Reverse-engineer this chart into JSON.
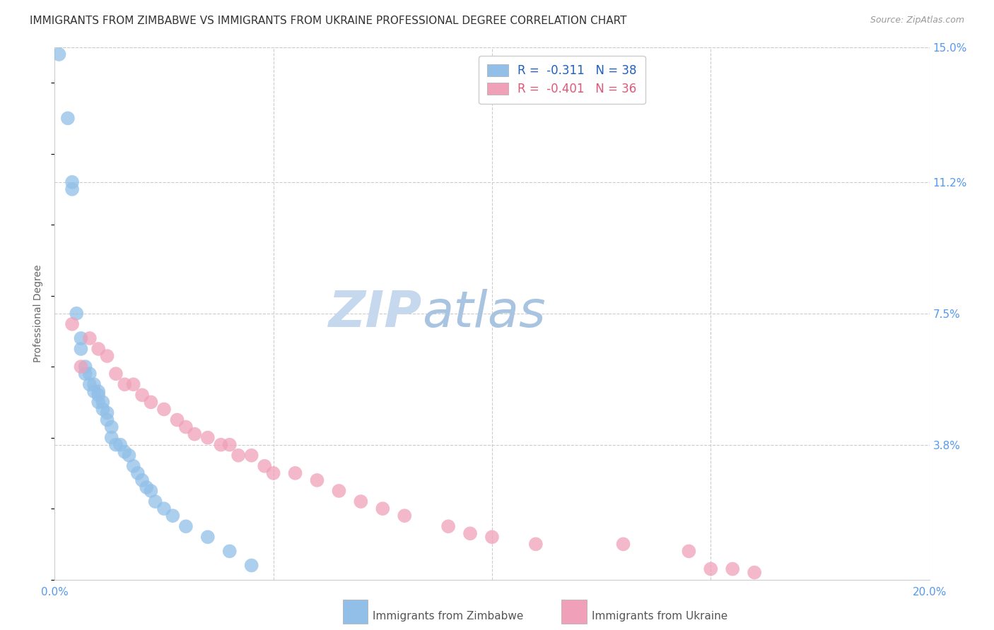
{
  "title": "IMMIGRANTS FROM ZIMBABWE VS IMMIGRANTS FROM UKRAINE PROFESSIONAL DEGREE CORRELATION CHART",
  "source": "Source: ZipAtlas.com",
  "ylabel": "Professional Degree",
  "xlim": [
    0.0,
    0.2
  ],
  "ylim": [
    0.0,
    0.15
  ],
  "ytick_right_labels": [
    "15.0%",
    "11.2%",
    "7.5%",
    "3.8%"
  ],
  "ytick_right_values": [
    0.15,
    0.112,
    0.075,
    0.038
  ],
  "xtick_values": [
    0.0,
    0.05,
    0.1,
    0.15,
    0.2
  ],
  "grid_color": "#cccccc",
  "background_color": "#ffffff",
  "watermark_zip_color": "#c5d8ee",
  "watermark_atlas_color": "#a8c4e0",
  "series": [
    {
      "name": "Immigrants from Zimbabwe",
      "color": "#91bfe8",
      "trend_color": "#2060c0",
      "R": -0.311,
      "N": 38,
      "x": [
        0.001,
        0.003,
        0.004,
        0.004,
        0.005,
        0.006,
        0.006,
        0.007,
        0.007,
        0.008,
        0.008,
        0.009,
        0.009,
        0.01,
        0.01,
        0.01,
        0.011,
        0.011,
        0.012,
        0.012,
        0.013,
        0.013,
        0.014,
        0.015,
        0.016,
        0.017,
        0.018,
        0.019,
        0.02,
        0.021,
        0.022,
        0.023,
        0.025,
        0.027,
        0.03,
        0.035,
        0.04,
        0.045
      ],
      "y": [
        0.148,
        0.13,
        0.112,
        0.11,
        0.075,
        0.068,
        0.065,
        0.06,
        0.058,
        0.058,
        0.055,
        0.055,
        0.053,
        0.053,
        0.052,
        0.05,
        0.05,
        0.048,
        0.047,
        0.045,
        0.043,
        0.04,
        0.038,
        0.038,
        0.036,
        0.035,
        0.032,
        0.03,
        0.028,
        0.026,
        0.025,
        0.022,
        0.02,
        0.018,
        0.015,
        0.012,
        0.008,
        0.004
      ]
    },
    {
      "name": "Immigrants from Ukraine",
      "color": "#f0a0b8",
      "trend_color": "#e05878",
      "R": -0.401,
      "N": 36,
      "x": [
        0.004,
        0.006,
        0.008,
        0.01,
        0.012,
        0.014,
        0.016,
        0.018,
        0.02,
        0.022,
        0.025,
        0.028,
        0.03,
        0.032,
        0.035,
        0.038,
        0.04,
        0.042,
        0.045,
        0.048,
        0.05,
        0.055,
        0.06,
        0.065,
        0.07,
        0.075,
        0.08,
        0.09,
        0.095,
        0.1,
        0.11,
        0.13,
        0.145,
        0.15,
        0.155,
        0.16
      ],
      "y": [
        0.072,
        0.06,
        0.068,
        0.065,
        0.063,
        0.058,
        0.055,
        0.055,
        0.052,
        0.05,
        0.048,
        0.045,
        0.043,
        0.041,
        0.04,
        0.038,
        0.038,
        0.035,
        0.035,
        0.032,
        0.03,
        0.03,
        0.028,
        0.025,
        0.022,
        0.02,
        0.018,
        0.015,
        0.013,
        0.012,
        0.01,
        0.01,
        0.008,
        0.003,
        0.003,
        0.002
      ]
    }
  ],
  "legend_r_color_zimbabwe": "#2060c0",
  "legend_r_color_ukraine": "#e05878",
  "legend_patch_color_zimbabwe": "#91bfe8",
  "legend_patch_color_ukraine": "#f0a0b8",
  "title_fontsize": 11,
  "axis_label_fontsize": 10,
  "tick_fontsize": 11,
  "legend_fontsize": 12,
  "watermark_fontsize_zip": 52,
  "watermark_fontsize_atlas": 52
}
